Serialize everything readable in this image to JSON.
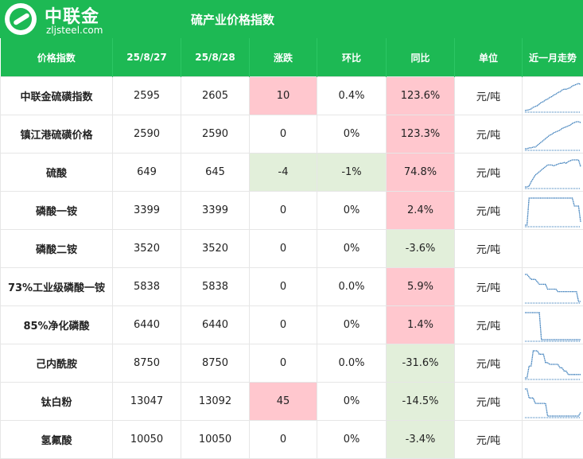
{
  "header": {
    "brand": "中联金",
    "site": "zljsteel.com",
    "title": "硫产业价格指数"
  },
  "columns": [
    "价格指数",
    "25/8/27",
    "25/8/28",
    "涨跌",
    "环比",
    "同比",
    "单位",
    "近一月走势"
  ],
  "colors": {
    "header_green": "#1db954",
    "up_red": "#ffc7ce",
    "down_green": "#e2efda",
    "spark_blue": "#2e75b6"
  },
  "rows": [
    {
      "name": "中联金硫磺指数",
      "d1": "2595",
      "d2": "2605",
      "change": "10",
      "mom": "0.4%",
      "yoy": "123.6%",
      "unit": "元/吨",
      "trend": [
        8,
        8.5,
        9,
        10,
        12,
        13,
        14,
        16,
        18,
        19,
        21,
        22,
        24,
        25,
        27,
        28,
        30,
        31,
        33,
        34,
        34,
        35,
        36,
        38,
        39,
        40,
        41,
        40
      ]
    },
    {
      "name": "镇江港硫磺价格",
      "d1": "2590",
      "d2": "2590",
      "change": "0",
      "mom": "0%",
      "yoy": "123.3%",
      "unit": "元/吨",
      "trend": [
        8,
        8,
        9,
        9,
        10,
        10,
        12,
        14,
        16,
        18,
        20,
        22,
        24,
        25,
        27,
        28,
        29,
        30,
        32,
        33,
        34,
        35,
        36,
        38,
        39,
        40,
        40,
        39
      ]
    },
    {
      "name": "硫酸",
      "d1": "649",
      "d2": "645",
      "change": "-4",
      "mom": "-1%",
      "yoy": "74.8%",
      "unit": "元/吨",
      "trend": [
        8,
        8,
        9,
        14,
        18,
        22,
        24,
        26,
        28,
        30,
        32,
        34,
        34,
        34,
        33,
        34,
        35,
        36,
        36,
        37,
        36,
        38,
        39,
        40,
        40,
        40,
        40,
        32
      ]
    },
    {
      "name": "磷酸一铵",
      "d1": "3399",
      "d2": "3399",
      "change": "0",
      "mom": "0%",
      "yoy": "2.4%",
      "unit": "元/吨",
      "trend": [
        6,
        6,
        40,
        40,
        40,
        40,
        40,
        40,
        40,
        40,
        40,
        40,
        40,
        40,
        40,
        40,
        40,
        40,
        40,
        40,
        40,
        40,
        40,
        40,
        30,
        30,
        30,
        10
      ]
    },
    {
      "name": "磷酸二铵",
      "d1": "3520",
      "d2": "3520",
      "change": "0",
      "mom": "0%",
      "yoy": "-3.6%",
      "unit": "元/吨",
      "trend": []
    },
    {
      "name": "73%工业级磷酸一铵",
      "d1": "5838",
      "d2": "5838",
      "change": "0",
      "mom": "0.0%",
      "yoy": "5.9%",
      "unit": "元/吨",
      "trend": [
        40,
        40,
        38,
        36,
        36,
        36,
        34,
        32,
        32,
        32,
        32,
        28,
        28,
        28,
        28,
        28,
        26,
        26,
        26,
        26,
        26,
        26,
        26,
        26,
        26,
        26,
        18,
        18
      ]
    },
    {
      "name": "85%净化磷酸",
      "d1": "6440",
      "d2": "6440",
      "change": "0",
      "mom": "0%",
      "yoy": "1.4%",
      "unit": "元/吨",
      "trend": [
        40,
        40,
        40,
        40,
        40,
        40,
        40,
        40,
        12,
        12,
        12,
        12,
        12,
        12,
        12,
        12,
        12,
        12,
        12,
        12,
        12,
        12,
        12,
        12,
        12,
        12,
        12,
        12
      ]
    },
    {
      "name": "己内酰胺",
      "d1": "8750",
      "d2": "8750",
      "change": "0",
      "mom": "0.0%",
      "yoy": "-31.6%",
      "unit": "元/吨",
      "trend": [
        8,
        8,
        22,
        22,
        40,
        40,
        40,
        36,
        36,
        36,
        26,
        26,
        24,
        24,
        24,
        24,
        24,
        20,
        20,
        16,
        16,
        12,
        12,
        12,
        12,
        12,
        12,
        12
      ]
    },
    {
      "name": "钛白粉",
      "d1": "13047",
      "d2": "13092",
      "change": "45",
      "mom": "0%",
      "yoy": "-14.5%",
      "unit": "元/吨",
      "trend": [
        40,
        40,
        30,
        30,
        30,
        24,
        24,
        24,
        24,
        24,
        24,
        10,
        10,
        10,
        10,
        10,
        10,
        10,
        10,
        10,
        10,
        10,
        10,
        10,
        10,
        10,
        10,
        14
      ]
    },
    {
      "name": "氢氟酸",
      "d1": "10050",
      "d2": "10050",
      "change": "0",
      "mom": "0%",
      "yoy": "-3.4%",
      "unit": "元/吨",
      "trend": []
    }
  ]
}
